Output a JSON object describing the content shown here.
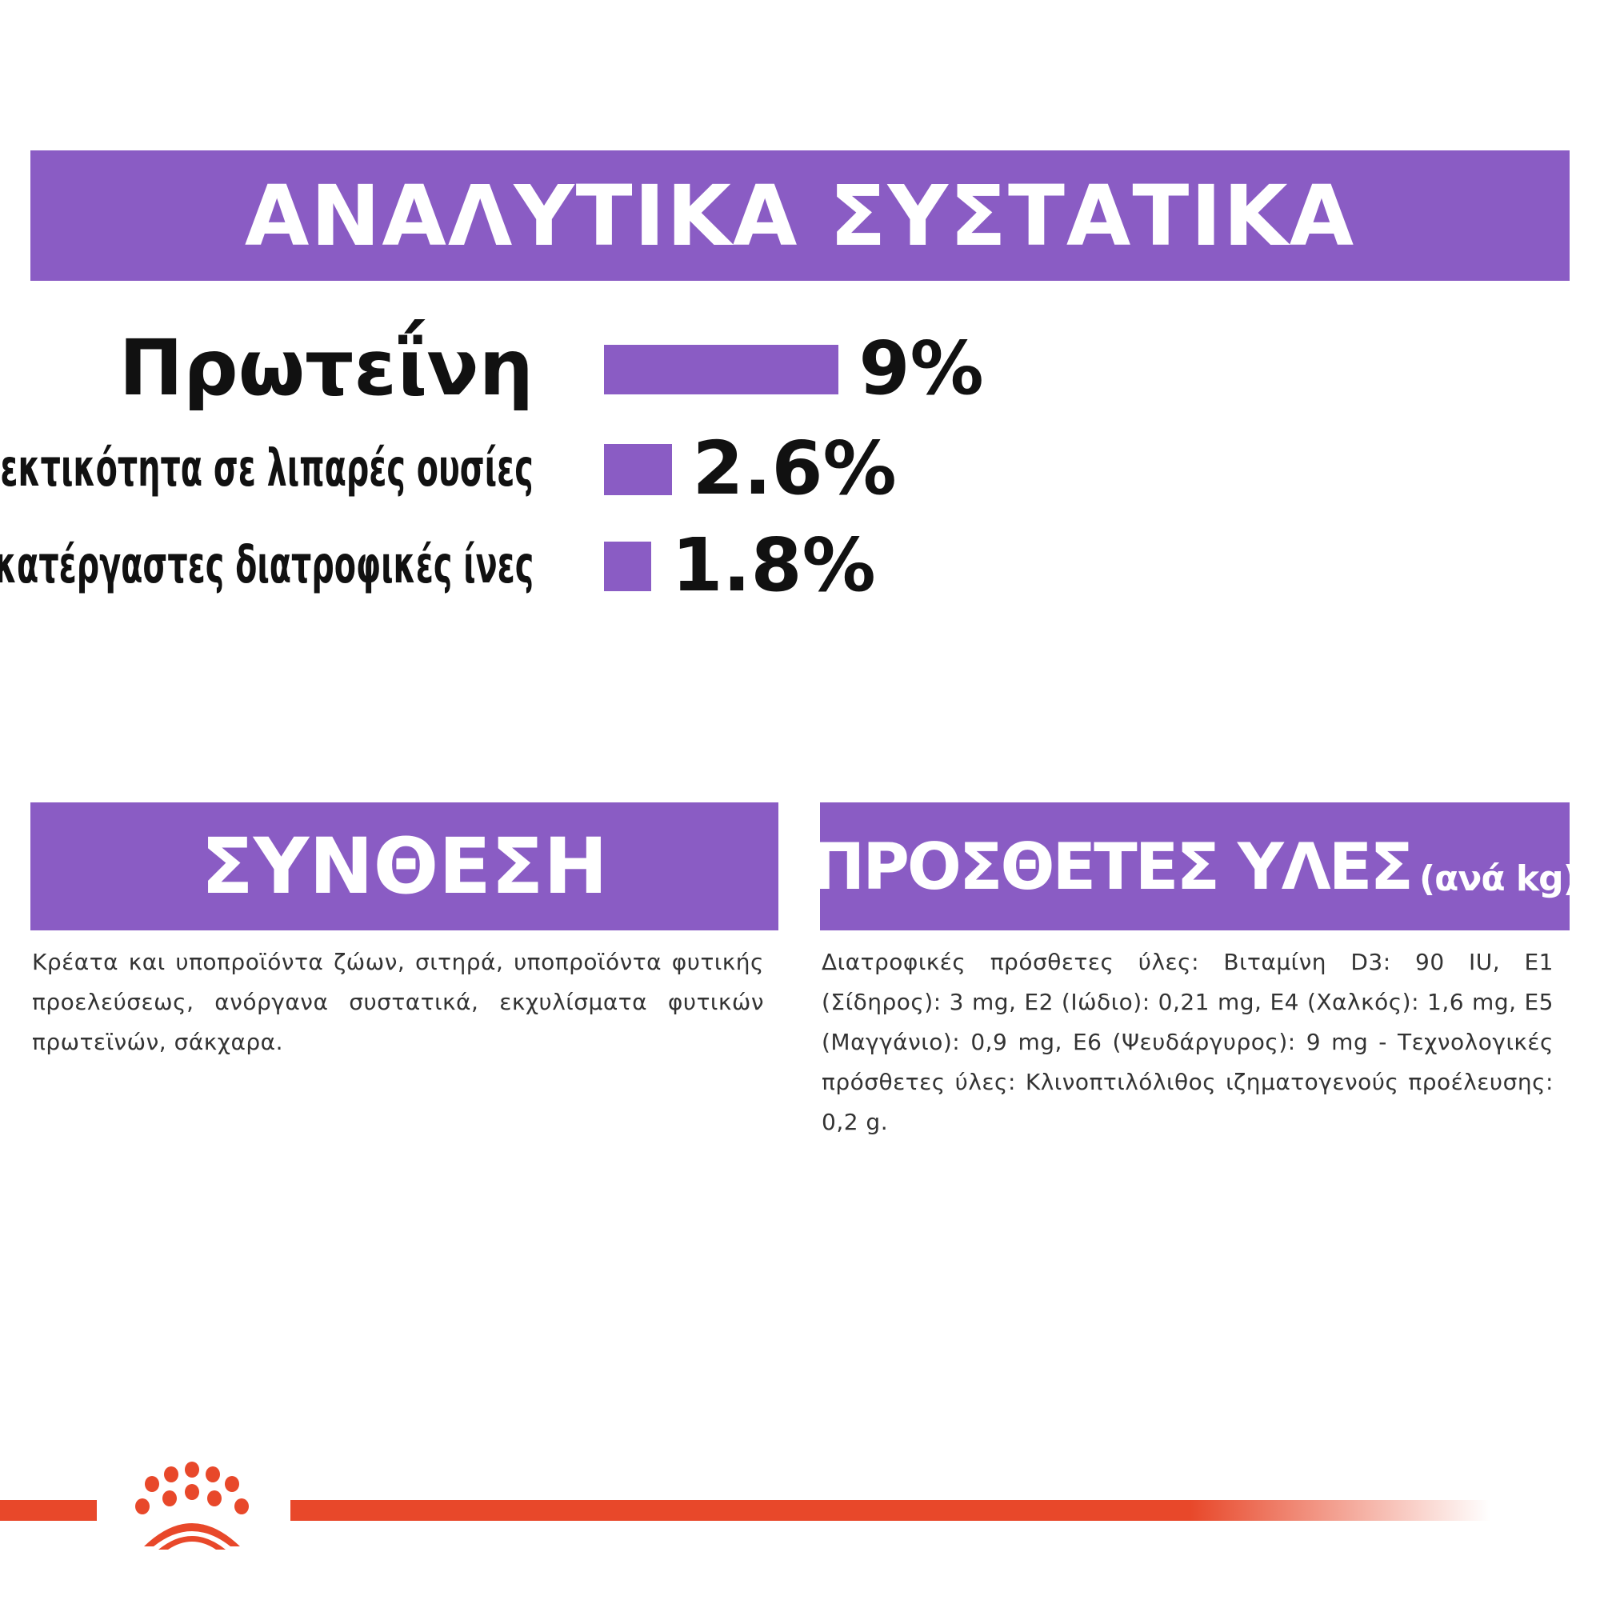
{
  "header": {
    "title": "ΑΝΑΛΥΤΙΚΑ ΣΥΣΤΑΤΙΚΑ"
  },
  "chart_data": {
    "type": "bar",
    "orientation": "horizontal",
    "categories": [
      "Πρωτεΐνη",
      "Περιεκτικότητα σε λιπαρές ουσίες",
      "Ακατέργαστες διατροφικές ίνες"
    ],
    "values": [
      9,
      2.6,
      1.8
    ],
    "value_labels": [
      "9%",
      "2.6%",
      "1.8%"
    ],
    "unit": "%",
    "bar_color": "#8a5cc4",
    "grid": false
  },
  "composition": {
    "title": "ΣΥΝΘΕΣΗ",
    "text": "Κρέατα και υποπροϊόντα ζώων, σιτηρά, υποπροϊόντα φυτικής προελεύσεως, ανόργανα συστατικά, εκχυλίσματα φυτικών πρωτεϊνών, σάκχαρα."
  },
  "additives": {
    "title": "ΠΡΟΣΘΕΤΕΣ ΥΛΕΣ",
    "unit": "(ανά kg)",
    "text": "Διατροφικές πρόσθετες ύλες: Βιταμίνη D3: 90 IU, E1 (Σίδηρος): 3 mg, E2 (Ιώδιο): 0,21 mg, E4 (Χαλκός): 1,6 mg, E5 (Μαγγάνιο): 0,9 mg, E6 (Ψευδάργυρος): 9 mg - Τεχνολογικές πρόσθετες ύλες: Κλινοπτιλόλιθος ιζηματογενούς προέλευσης: 0,2 g."
  },
  "brand": {
    "logo": "royal-canin-crown-logo",
    "accent": "#e8482a",
    "primary": "#8a5cc4"
  }
}
